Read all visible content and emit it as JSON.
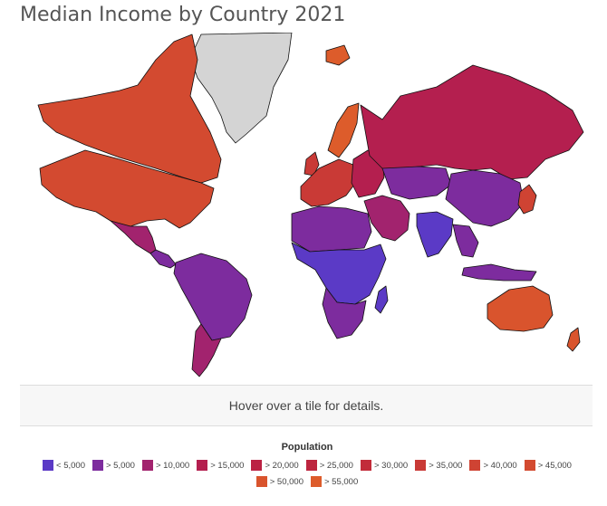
{
  "header": {
    "title": "Median Income by Country 2021"
  },
  "info": {
    "hover_text": "Hover over a tile for details."
  },
  "legend": {
    "title": "Population",
    "items": [
      {
        "label": "< 5,000",
        "color": "#5b3ac6"
      },
      {
        "label": "> 5,000",
        "color": "#7d2c9e"
      },
      {
        "label": "> 10,000",
        "color": "#a2236e"
      },
      {
        "label": "> 15,000",
        "color": "#b41f4f"
      },
      {
        "label": "> 20,000",
        "color": "#bb2244"
      },
      {
        "label": "> 25,000",
        "color": "#bd253f"
      },
      {
        "label": "> 30,000",
        "color": "#c22c3a"
      },
      {
        "label": "> 35,000",
        "color": "#c93a36"
      },
      {
        "label": "> 40,000",
        "color": "#cf4333"
      },
      {
        "label": "> 45,000",
        "color": "#d34a30"
      },
      {
        "label": "> 50,000",
        "color": "#d9542d"
      },
      {
        "label": "> 55,000",
        "color": "#dd5c2b"
      }
    ]
  },
  "map": {
    "no_data_color": "#d4d4d4",
    "regions": [
      {
        "name": "canada",
        "color": "#d34a30"
      },
      {
        "name": "usa",
        "color": "#d34a30"
      },
      {
        "name": "greenland",
        "color": "#d4d4d4"
      },
      {
        "name": "mexico",
        "color": "#a2236e"
      },
      {
        "name": "central-america",
        "color": "#7d2c9e"
      },
      {
        "name": "south-america",
        "color": "#7d2c9e"
      },
      {
        "name": "chile-argentina",
        "color": "#a2236e"
      },
      {
        "name": "western-europe",
        "color": "#c93a36"
      },
      {
        "name": "scandinavia",
        "color": "#dd5c2b"
      },
      {
        "name": "eastern-europe",
        "color": "#b41f4f"
      },
      {
        "name": "russia",
        "color": "#b41f4f"
      },
      {
        "name": "middle-east",
        "color": "#a2236e"
      },
      {
        "name": "north-africa",
        "color": "#7d2c9e"
      },
      {
        "name": "sub-saharan-africa",
        "color": "#5b3ac6"
      },
      {
        "name": "southern-africa",
        "color": "#7d2c9e"
      },
      {
        "name": "central-asia",
        "color": "#7d2c9e"
      },
      {
        "name": "china",
        "color": "#7d2c9e"
      },
      {
        "name": "india",
        "color": "#5b3ac6"
      },
      {
        "name": "southeast-asia",
        "color": "#7d2c9e"
      },
      {
        "name": "japan-korea",
        "color": "#cf4333"
      },
      {
        "name": "australia",
        "color": "#d9542d"
      },
      {
        "name": "new-zealand",
        "color": "#d9542d"
      },
      {
        "name": "iceland",
        "color": "#dd5c2b"
      },
      {
        "name": "madagascar",
        "color": "#5b3ac6"
      },
      {
        "name": "indonesia",
        "color": "#7d2c9e"
      },
      {
        "name": "uk-ireland",
        "color": "#c93a36"
      }
    ]
  }
}
